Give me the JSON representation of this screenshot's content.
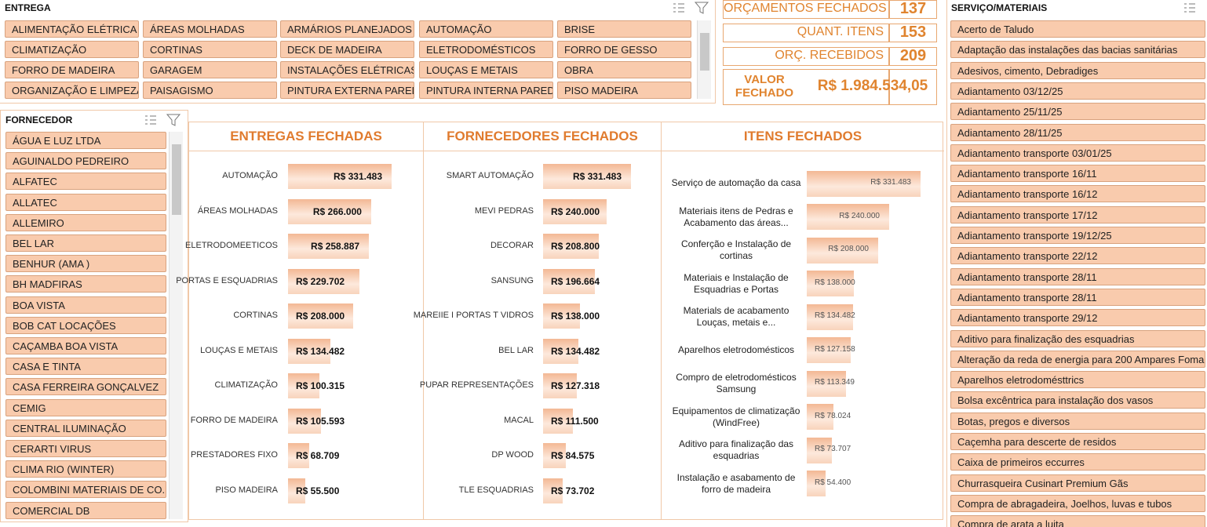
{
  "entrega": {
    "title": "ENTREGA",
    "items": [
      "ALIMENTAÇÃO ELÉTRICA",
      "ÁREAS MOLHADAS",
      "ARMÁRIOS PLANEJADOS",
      "AUTOMAÇÃO",
      "BRISE",
      "CLIMATIZAÇÃO",
      "CORTINAS",
      "DECK DE MADEIRA",
      "ELETRODOMÉSTICOS",
      "FORRO DE GESSO",
      "FORRO DE MADEIRA",
      "GARAGEM",
      "INSTALAÇÕES ELÉTRICAS",
      "LOUÇAS E METAIS",
      "OBRA",
      "ORGANIZAÇÃO E LIMPEZA",
      "PAISAGISMO",
      "PINTURA EXTERNA PAREDES",
      "PINTURA INTERNA PAREDES",
      "PISO MADEIRA"
    ]
  },
  "fornecedor": {
    "title": "FORNECEDOR",
    "items": [
      "ÁGUA E LUZ LTDA",
      "AGUINALDO PEDREIRO",
      "ALFATEC",
      "ALLATEC",
      "ALLEMIRO",
      "BEL LAR",
      "BENHUR (AMA )",
      "BH MADFIRAS",
      "BOA VISTA",
      "BOB CAT LOCAÇÕES",
      "CAÇAMBA BOA VISTA",
      "CASA E TINTA",
      "CASA FERREIRA GONÇALVEZ",
      "CEMIG",
      "CENTRAL ILUMINAÇÃO",
      "CERARTI VIRUS",
      "CLIMA RIO (WINTER)",
      "COLOMBINI MATERIAIS DE CO...",
      "COMERCIAL DB"
    ]
  },
  "servico": {
    "title": "SERVIÇO/MATERIAIS",
    "items": [
      "Acerto de Taludo",
      "Adaptação das instalações das bacias sanitárias",
      "Adesivos, cimento, Debradiges",
      "Adiantamento 03/12/25",
      "Adiantamento 25/11/25",
      "Adiantamento 28/11/25",
      "Adiantamento transporte 03/01/25",
      "Adiantamento transporte 16/11",
      "Adiantamento transporte 16/12",
      "Adiantamento transporte 17/12",
      "Adiantamento transporte 19/12/25",
      "Adiantamento transporte 22/12",
      "Adiantamento transporte 28/11",
      "Adiantamento transporte 28/11",
      "Adiantamento transporte 29/12",
      "Aditivo para finalização des esquadrias",
      "Alteração da reda de energia para 200 Ampares Foma...",
      "Aparelhos eletrodomésttrics",
      "Bolsa excêntrica para instalação dos vasos",
      "Botas, pregos e diversos",
      "Caçemha para descerte de residos",
      "Caixa de primeiros eccurres",
      "Churrasqueira Cusinart Premium Gãs",
      "Compra de abragadeira, Joelhos, luvas e tubos",
      "Compra de arata a luita"
    ]
  },
  "kpis": [
    {
      "label": "ORÇAMENTOS FECHADOS",
      "value": 137
    },
    {
      "label": "QUANT. ITENS",
      "value": 153
    },
    {
      "label": "ORÇ. RECEBIDOS",
      "value": 209
    },
    {
      "label": "VALOR\nFECHADO",
      "value": "R$ 1.984.534,05"
    }
  ],
  "chart_data": [
    {
      "type": "bar",
      "orientation": "horizontal",
      "title": "ENTREGAS FECHADAS",
      "color": "#f6c3a3",
      "categories": [
        "AUTOMAÇÃO",
        "ÁREAS MOLHADAS",
        "ELETRODOMEETICOS",
        "PORTAS E ESQUADRIAS",
        "CORTINAS",
        "LOUÇAS E METAIS",
        "CLIMATIZAÇÃO",
        "FORRO DE MADEIRA",
        "PRESTADORES FIXO",
        "PISO MADEIRA"
      ],
      "values": [
        331483,
        266000,
        258887,
        229702,
        208000,
        134482,
        100315,
        105593,
        68709,
        55500
      ],
      "value_labels": [
        "R$ 331.483",
        "R$ 266.000",
        "R$ 258.887",
        "R$ 229.702",
        "R$ 208.000",
        "R$ 134.482",
        "R$ 100.315",
        "R$ 105.593",
        "R$ 68.709",
        "R$ 55.500"
      ]
    },
    {
      "type": "bar",
      "orientation": "horizontal",
      "title": "FORNECEDORES FECHADOS",
      "color": "#f6c3a3",
      "categories": [
        "SMART AUTOMAÇÃO",
        "MEVI PEDRAS",
        "DECORAR",
        "SANSUNG",
        "MAREIIE I PORTAS T VIDROS",
        "BEL LAR",
        "PUPAR REPRESENTAÇÕES",
        "MACAL",
        "DP WOOD",
        "TLE ESQUADRIAS"
      ],
      "values": [
        331483,
        240000,
        208800,
        196664,
        138000,
        134482,
        127318,
        111500,
        84575,
        73702
      ],
      "value_labels": [
        "R$ 331.483",
        "R$ 240.000",
        "R$ 208.800",
        "R$ 196.664",
        "R$ 138.000",
        "R$ 134.482",
        "R$ 127.318",
        "R$ 111.500",
        "R$ 84.575",
        "R$ 73.702"
      ]
    },
    {
      "type": "bar",
      "orientation": "horizontal",
      "title": "ITENS FECHADOS",
      "color": "#f6c3a3",
      "categories": [
        "Serviço de automação da casa",
        "Materiais itens de Pedras e\nAcabamento das áreas...",
        "Conferção e Instalação de\ncortinas",
        "Materiais e Instalação de\nEsquadrias e Portas",
        "Materials de acabamento\nLouças, metais e...",
        "Aparelhos eletrodomésticos",
        "Compro de eletrodomésticos\nSamsung",
        "Equipamentos de climatização\n(WindFree)",
        "Aditivo para finalização das\nesquadrias",
        "Instalação e asabamento  de\nforro de madeira"
      ],
      "values": [
        331483,
        240000,
        208000,
        138000,
        134482,
        127158,
        113349,
        78024,
        73707,
        54400
      ],
      "value_labels": [
        "R$ 331.483",
        "R$ 240.000",
        "R$ 208.000",
        "R$ 138.000",
        "R$ 134.482",
        "R$ 127.158",
        "R$ 113.349",
        "R$ 78.024",
        "R$ 73.707",
        "R$ 54.400"
      ]
    }
  ]
}
